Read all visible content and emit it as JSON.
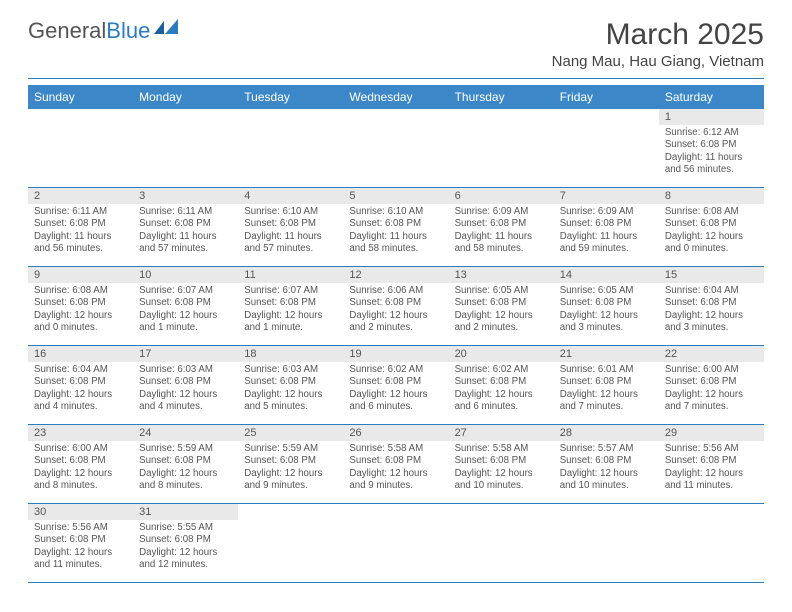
{
  "brand": {
    "general": "General",
    "blue": "Blue"
  },
  "title": "March 2025",
  "location": "Nang Mau, Hau Giang, Vietnam",
  "colors": {
    "header_bg": "#3b87c8",
    "divider": "#2b7bbf",
    "daynum_bg": "#e9e9e9",
    "text": "#555555",
    "brand_blue": "#2b7bbf"
  },
  "weekdays": [
    "Sunday",
    "Monday",
    "Tuesday",
    "Wednesday",
    "Thursday",
    "Friday",
    "Saturday"
  ],
  "weeks": [
    [
      null,
      null,
      null,
      null,
      null,
      null,
      {
        "n": "1",
        "sr": "6:12 AM",
        "ss": "6:08 PM",
        "dl": "11 hours and 56 minutes."
      }
    ],
    [
      {
        "n": "2",
        "sr": "6:11 AM",
        "ss": "6:08 PM",
        "dl": "11 hours and 56 minutes."
      },
      {
        "n": "3",
        "sr": "6:11 AM",
        "ss": "6:08 PM",
        "dl": "11 hours and 57 minutes."
      },
      {
        "n": "4",
        "sr": "6:10 AM",
        "ss": "6:08 PM",
        "dl": "11 hours and 57 minutes."
      },
      {
        "n": "5",
        "sr": "6:10 AM",
        "ss": "6:08 PM",
        "dl": "11 hours and 58 minutes."
      },
      {
        "n": "6",
        "sr": "6:09 AM",
        "ss": "6:08 PM",
        "dl": "11 hours and 58 minutes."
      },
      {
        "n": "7",
        "sr": "6:09 AM",
        "ss": "6:08 PM",
        "dl": "11 hours and 59 minutes."
      },
      {
        "n": "8",
        "sr": "6:08 AM",
        "ss": "6:08 PM",
        "dl": "12 hours and 0 minutes."
      }
    ],
    [
      {
        "n": "9",
        "sr": "6:08 AM",
        "ss": "6:08 PM",
        "dl": "12 hours and 0 minutes."
      },
      {
        "n": "10",
        "sr": "6:07 AM",
        "ss": "6:08 PM",
        "dl": "12 hours and 1 minute."
      },
      {
        "n": "11",
        "sr": "6:07 AM",
        "ss": "6:08 PM",
        "dl": "12 hours and 1 minute."
      },
      {
        "n": "12",
        "sr": "6:06 AM",
        "ss": "6:08 PM",
        "dl": "12 hours and 2 minutes."
      },
      {
        "n": "13",
        "sr": "6:05 AM",
        "ss": "6:08 PM",
        "dl": "12 hours and 2 minutes."
      },
      {
        "n": "14",
        "sr": "6:05 AM",
        "ss": "6:08 PM",
        "dl": "12 hours and 3 minutes."
      },
      {
        "n": "15",
        "sr": "6:04 AM",
        "ss": "6:08 PM",
        "dl": "12 hours and 3 minutes."
      }
    ],
    [
      {
        "n": "16",
        "sr": "6:04 AM",
        "ss": "6:08 PM",
        "dl": "12 hours and 4 minutes."
      },
      {
        "n": "17",
        "sr": "6:03 AM",
        "ss": "6:08 PM",
        "dl": "12 hours and 4 minutes."
      },
      {
        "n": "18",
        "sr": "6:03 AM",
        "ss": "6:08 PM",
        "dl": "12 hours and 5 minutes."
      },
      {
        "n": "19",
        "sr": "6:02 AM",
        "ss": "6:08 PM",
        "dl": "12 hours and 6 minutes."
      },
      {
        "n": "20",
        "sr": "6:02 AM",
        "ss": "6:08 PM",
        "dl": "12 hours and 6 minutes."
      },
      {
        "n": "21",
        "sr": "6:01 AM",
        "ss": "6:08 PM",
        "dl": "12 hours and 7 minutes."
      },
      {
        "n": "22",
        "sr": "6:00 AM",
        "ss": "6:08 PM",
        "dl": "12 hours and 7 minutes."
      }
    ],
    [
      {
        "n": "23",
        "sr": "6:00 AM",
        "ss": "6:08 PM",
        "dl": "12 hours and 8 minutes."
      },
      {
        "n": "24",
        "sr": "5:59 AM",
        "ss": "6:08 PM",
        "dl": "12 hours and 8 minutes."
      },
      {
        "n": "25",
        "sr": "5:59 AM",
        "ss": "6:08 PM",
        "dl": "12 hours and 9 minutes."
      },
      {
        "n": "26",
        "sr": "5:58 AM",
        "ss": "6:08 PM",
        "dl": "12 hours and 9 minutes."
      },
      {
        "n": "27",
        "sr": "5:58 AM",
        "ss": "6:08 PM",
        "dl": "12 hours and 10 minutes."
      },
      {
        "n": "28",
        "sr": "5:57 AM",
        "ss": "6:08 PM",
        "dl": "12 hours and 10 minutes."
      },
      {
        "n": "29",
        "sr": "5:56 AM",
        "ss": "6:08 PM",
        "dl": "12 hours and 11 minutes."
      }
    ],
    [
      {
        "n": "30",
        "sr": "5:56 AM",
        "ss": "6:08 PM",
        "dl": "12 hours and 11 minutes."
      },
      {
        "n": "31",
        "sr": "5:55 AM",
        "ss": "6:08 PM",
        "dl": "12 hours and 12 minutes."
      },
      null,
      null,
      null,
      null,
      null
    ]
  ],
  "labels": {
    "sunrise": "Sunrise: ",
    "sunset": "Sunset: ",
    "daylight": "Daylight: "
  }
}
